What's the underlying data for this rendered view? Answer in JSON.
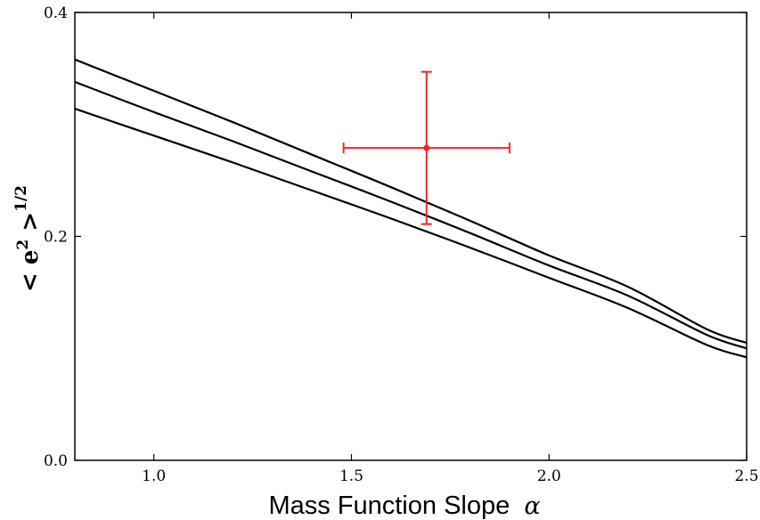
{
  "chart_data": {
    "type": "line",
    "title": "",
    "xlabel_text": "Mass Function Slope",
    "xlabel_symbol": "α",
    "ylabel": {
      "base": "< e",
      "inner_sup": "2",
      "close": " >",
      "outer_sup": "1/2"
    },
    "xlim": [
      0.8,
      2.5
    ],
    "ylim": [
      0.0,
      0.4
    ],
    "x_ticks": [
      1.0,
      1.5,
      2.0,
      2.5
    ],
    "x_tick_labels": [
      "1.0",
      "1.5",
      "2.0",
      "2.5"
    ],
    "y_ticks": [
      0.0,
      0.2,
      0.4
    ],
    "y_tick_labels": [
      "0.0",
      "0.2",
      "0.4"
    ],
    "grid": false,
    "line_color": "#000000",
    "series": [
      {
        "x": [
          0.8,
          1.0,
          1.2,
          1.4,
          1.6,
          1.8,
          2.0,
          2.2,
          2.4,
          2.5
        ],
        "y": [
          0.358,
          0.33,
          0.302,
          0.273,
          0.244,
          0.214,
          0.183,
          0.155,
          0.117,
          0.105
        ]
      },
      {
        "x": [
          0.8,
          1.0,
          1.2,
          1.4,
          1.6,
          1.8,
          2.0,
          2.2,
          2.4,
          2.5
        ],
        "y": [
          0.338,
          0.311,
          0.285,
          0.258,
          0.231,
          0.203,
          0.174,
          0.147,
          0.112,
          0.1
        ]
      },
      {
        "x": [
          0.8,
          1.0,
          1.2,
          1.4,
          1.6,
          1.8,
          2.0,
          2.2,
          2.4,
          2.5
        ],
        "y": [
          0.314,
          0.29,
          0.266,
          0.241,
          0.216,
          0.19,
          0.163,
          0.136,
          0.103,
          0.092
        ]
      }
    ],
    "data_point": {
      "x": 1.69,
      "y": 0.279,
      "x_err": [
        1.48,
        1.9
      ],
      "y_err": [
        0.211,
        0.347
      ],
      "color": "#e8282a"
    }
  }
}
